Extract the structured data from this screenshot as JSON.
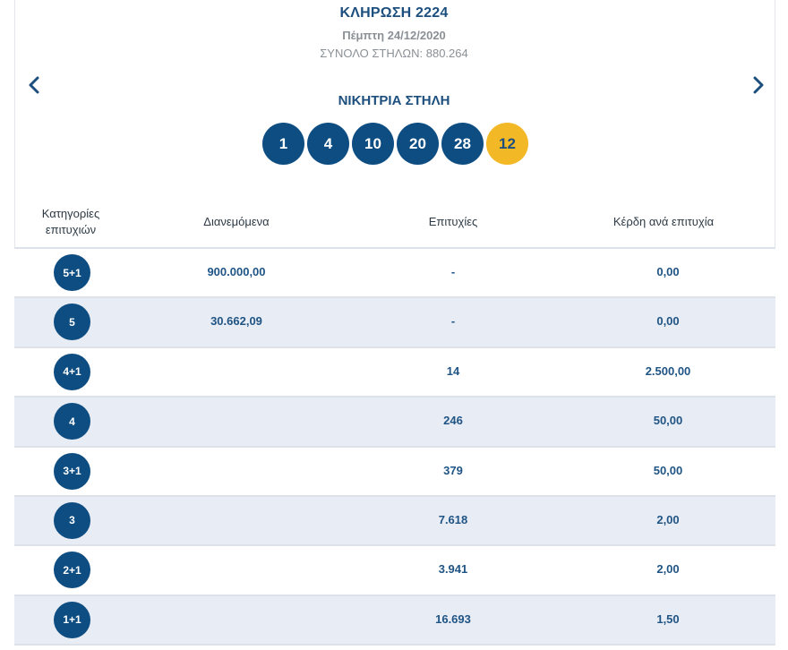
{
  "draw": {
    "title": "ΚΛΗΡΩΣΗ 2224",
    "date": "Πέμπτη 24/12/2020",
    "total_columns": "ΣΥΝΟΛΟ ΣΤΗΛΩΝ: 880.264"
  },
  "nav": {
    "prev_icon": "chevron-left-icon",
    "next_icon": "chevron-right-icon"
  },
  "winning": {
    "title": "ΝΙΚΗΤΡΙΑ ΣΤΗΛΗ",
    "numbers": [
      "1",
      "4",
      "10",
      "20",
      "28"
    ],
    "bonus": "12"
  },
  "table": {
    "headers": {
      "category_line1": "Κατηγορίες",
      "category_line2": "επιτυχιών",
      "distributed": "Διανεμόμενα",
      "winners": "Επιτυχίες",
      "prize": "Κέρδη ανά επιτυχία"
    },
    "rows": [
      {
        "category": "5+1",
        "distributed": "900.000,00",
        "winners": "-",
        "prize": "0,00"
      },
      {
        "category": "5",
        "distributed": "30.662,09",
        "winners": "-",
        "prize": "0,00"
      },
      {
        "category": "4+1",
        "distributed": "",
        "winners": "14",
        "prize": "2.500,00"
      },
      {
        "category": "4",
        "distributed": "",
        "winners": "246",
        "prize": "50,00"
      },
      {
        "category": "3+1",
        "distributed": "",
        "winners": "379",
        "prize": "50,00"
      },
      {
        "category": "3",
        "distributed": "",
        "winners": "7.618",
        "prize": "2,00"
      },
      {
        "category": "2+1",
        "distributed": "",
        "winners": "3.941",
        "prize": "2,00"
      },
      {
        "category": "1+1",
        "distributed": "",
        "winners": "16.693",
        "prize": "1,50"
      }
    ]
  },
  "colors": {
    "ball": "#0d4d82",
    "bonus_ball": "#f3b825",
    "text_blue": "#1d4f7e",
    "row_alt": "#e8ecf4"
  }
}
